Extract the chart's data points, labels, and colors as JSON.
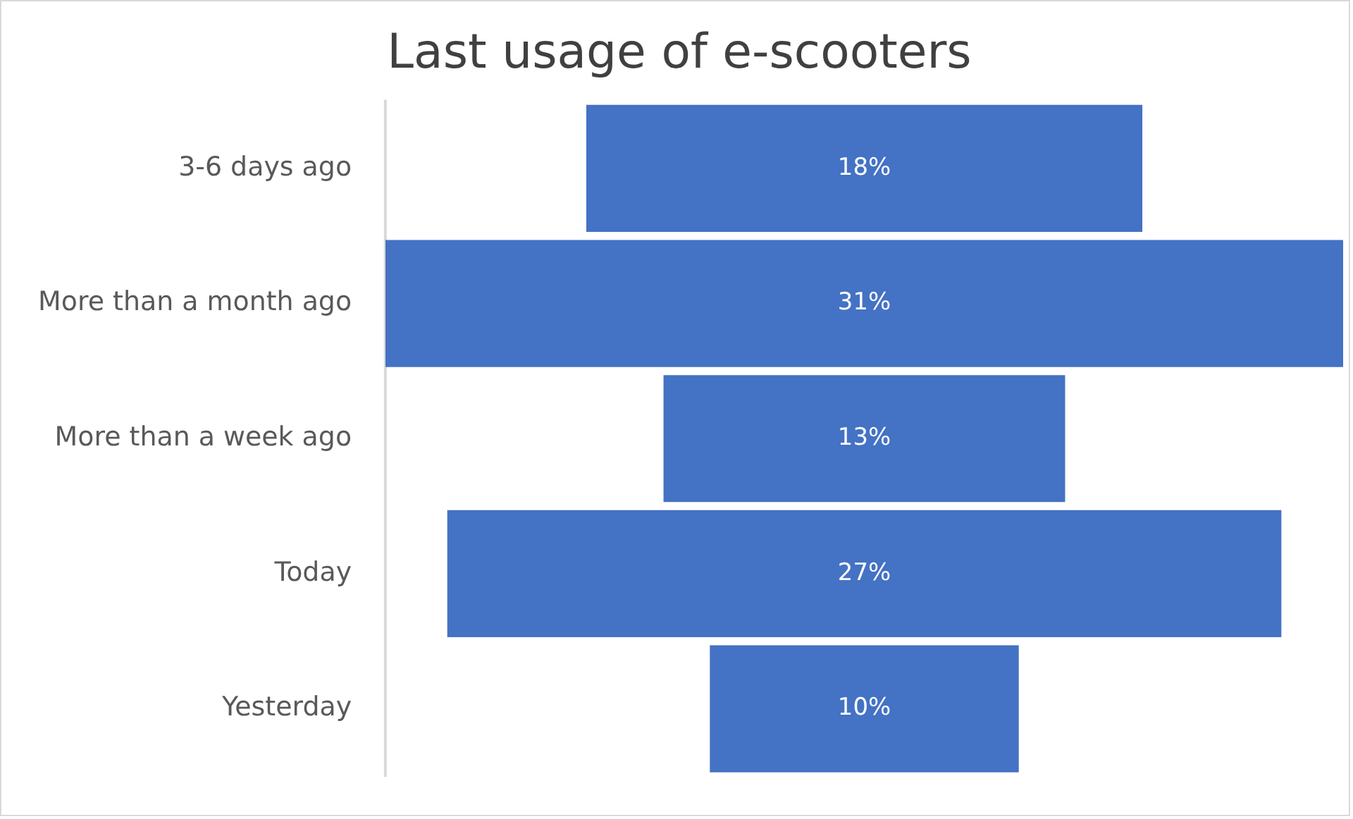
{
  "chart_data": {
    "type": "other",
    "title": "Last usage of e-scooters",
    "categories": [
      "3-6 days ago",
      "More than a month ago",
      "More than a week ago",
      "Today",
      "Yesterday"
    ],
    "values": [
      18,
      31,
      13,
      27,
      10
    ],
    "value_labels": [
      "18%",
      "31%",
      "13%",
      "27%",
      "10%"
    ],
    "color": "#4472c4"
  }
}
